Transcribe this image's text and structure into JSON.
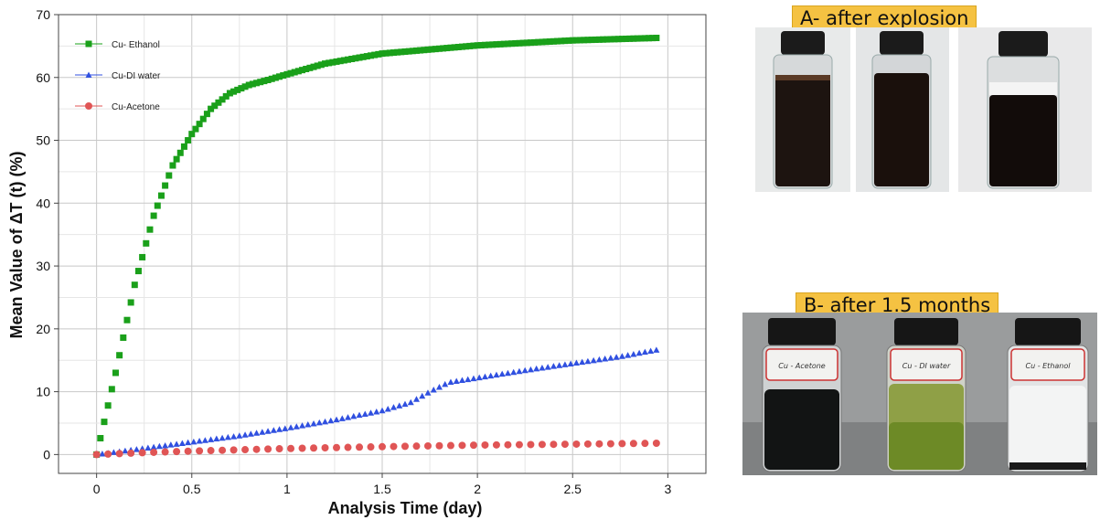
{
  "chart_data": {
    "type": "scatter",
    "title": "",
    "xlabel": "Analysis Time (day)",
    "ylabel": "Mean Value of ΔT (t) (%)",
    "xlim": [
      -0.2,
      3.2
    ],
    "ylim": [
      -3,
      70
    ],
    "xticks": [
      0,
      0.5,
      1,
      1.5,
      2,
      2.5,
      3
    ],
    "xtick_labels": [
      "0",
      "0.5",
      "1",
      "1.5",
      "2",
      "2.5",
      "3"
    ],
    "yticks": [
      0,
      10,
      20,
      30,
      40,
      50,
      60,
      70
    ],
    "ytick_labels": [
      "0",
      "10",
      "20",
      "30",
      "40",
      "50",
      "60",
      "70"
    ],
    "grid": true,
    "legend_position": "top-left",
    "series": [
      {
        "name": "Cu- Ethanol",
        "color": "#1aa01a",
        "marker": "square",
        "x": [
          0,
          0.1,
          0.2,
          0.3,
          0.4,
          0.5,
          0.6,
          0.7,
          0.8,
          0.9,
          1.0,
          1.2,
          1.5,
          2.0,
          2.5,
          2.95
        ],
        "y": [
          0,
          13,
          27,
          38,
          46,
          51,
          55,
          57.5,
          58.8,
          59.6,
          60.5,
          62.2,
          63.8,
          65.1,
          65.9,
          66.3
        ]
      },
      {
        "name": "Cu-DI water",
        "color": "#3050e0",
        "marker": "triangle",
        "x": [
          0,
          0.25,
          0.5,
          0.75,
          1.0,
          1.25,
          1.5,
          1.65,
          1.75,
          1.85,
          2.0,
          2.25,
          2.5,
          2.75,
          2.95
        ],
        "y": [
          0,
          1,
          2,
          3,
          4.2,
          5.5,
          7,
          8.3,
          10,
          11.5,
          12.2,
          13.4,
          14.5,
          15.6,
          16.7
        ]
      },
      {
        "name": "Cu-Acetone",
        "color": "#e05555",
        "marker": "circle",
        "x": [
          0,
          0.25,
          0.5,
          0.75,
          1.0,
          1.5,
          2.0,
          2.5,
          2.95
        ],
        "y": [
          0,
          0.3,
          0.55,
          0.75,
          0.95,
          1.25,
          1.5,
          1.65,
          1.8
        ]
      }
    ]
  },
  "photos": {
    "top_label": "A- after explosion",
    "bottom_label": "B- after 1.5 months",
    "bottom_vial_labels": [
      "Cu - Acetone",
      "Cu - DI water",
      "Cu - Ethanol"
    ]
  }
}
